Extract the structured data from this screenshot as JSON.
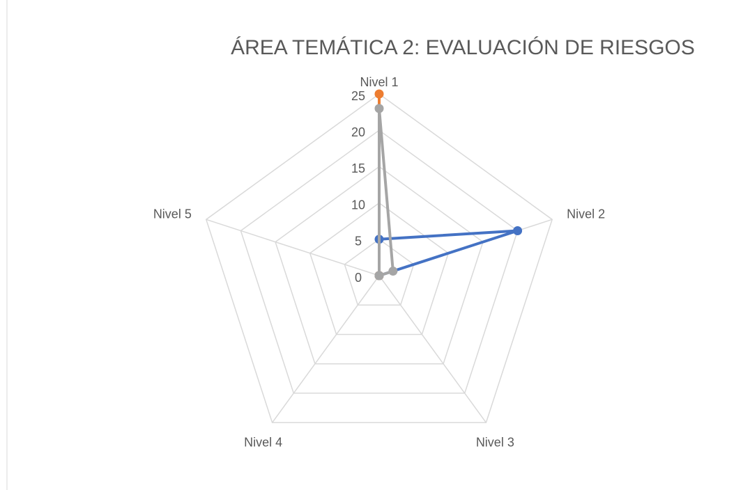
{
  "chart_data": {
    "type": "radar",
    "title": "ÁREA TEMÁTICA 2: EVALUACIÓN DE RIESGOS",
    "categories": [
      "Nivel 1",
      "Nivel 2",
      "Nivel 3",
      "Nivel 4",
      "Nivel 5"
    ],
    "series": [
      {
        "color": "#4472c4",
        "values": [
          5,
          20,
          0,
          0,
          0
        ]
      },
      {
        "color": "#ed7d31",
        "values": [
          25,
          0,
          0,
          0,
          0
        ]
      },
      {
        "color": "#a5a5a5",
        "values": [
          23,
          2,
          0,
          0,
          0
        ]
      }
    ],
    "ylim": [
      0,
      25
    ],
    "yticks": [
      0,
      5,
      10,
      15,
      20,
      25
    ],
    "grid": true
  }
}
